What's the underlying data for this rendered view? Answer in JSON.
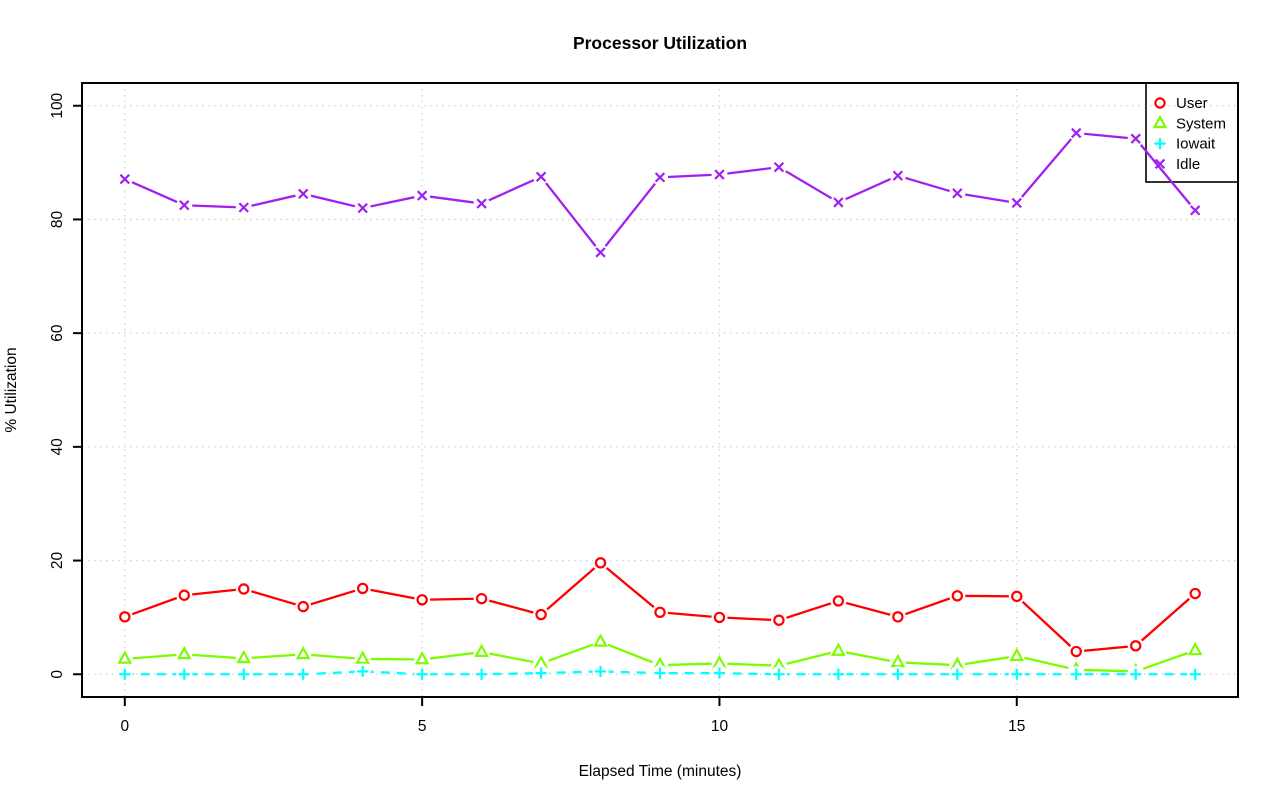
{
  "chart_data": {
    "type": "line",
    "title": "Processor Utilization",
    "xlabel": "Elapsed Time (minutes)",
    "ylabel": "% Utilization",
    "x": [
      0,
      1,
      2,
      3,
      4,
      5,
      6,
      7,
      8,
      9,
      10,
      11,
      12,
      13,
      14,
      15,
      16,
      17,
      18
    ],
    "xticks": [
      0,
      5,
      10,
      15
    ],
    "yticks": [
      0,
      20,
      40,
      60,
      80,
      100
    ],
    "xlim": [
      0,
      18
    ],
    "ylim": [
      0,
      100
    ],
    "grid": "dotted",
    "legend_position": "top-right",
    "legend_entries": [
      "User",
      "System",
      "Iowait",
      "Idle"
    ],
    "series": [
      {
        "name": "User",
        "color": "#FF0000",
        "marker": "circle",
        "line": "solid",
        "values": [
          10.1,
          13.9,
          15.0,
          11.9,
          15.1,
          13.1,
          13.3,
          10.5,
          19.6,
          10.9,
          10.0,
          9.5,
          12.9,
          10.1,
          13.8,
          13.7,
          4.0,
          5.0,
          14.2
        ]
      },
      {
        "name": "System",
        "color": "#7CFC00",
        "marker": "triangle",
        "line": "solid",
        "values": [
          2.7,
          3.5,
          2.8,
          3.5,
          2.7,
          2.6,
          3.9,
          1.9,
          5.7,
          1.6,
          1.9,
          1.5,
          4.1,
          2.1,
          1.6,
          3.2,
          0.8,
          0.5,
          4.2
        ]
      },
      {
        "name": "Iowait",
        "color": "#00FFFF",
        "marker": "plus",
        "line": "dashed",
        "values": [
          0,
          0,
          0,
          0,
          0.5,
          0,
          0,
          0.2,
          0.5,
          0.2,
          0.2,
          0,
          0,
          0,
          0,
          0,
          0,
          0,
          0
        ]
      },
      {
        "name": "Idle",
        "color": "#A020F0",
        "marker": "x",
        "line": "solid",
        "values": [
          87.1,
          82.5,
          82.1,
          84.5,
          82.0,
          84.2,
          82.8,
          87.5,
          74.2,
          87.4,
          87.9,
          89.2,
          83.0,
          87.7,
          84.6,
          82.9,
          95.2,
          94.2,
          81.6
        ]
      }
    ]
  },
  "colors": {
    "background": "#FFFFFF",
    "grid": "#D3D3D3",
    "axis": "#000000",
    "legend_border": "#000000",
    "legend_fill": "#FFFFFF"
  }
}
